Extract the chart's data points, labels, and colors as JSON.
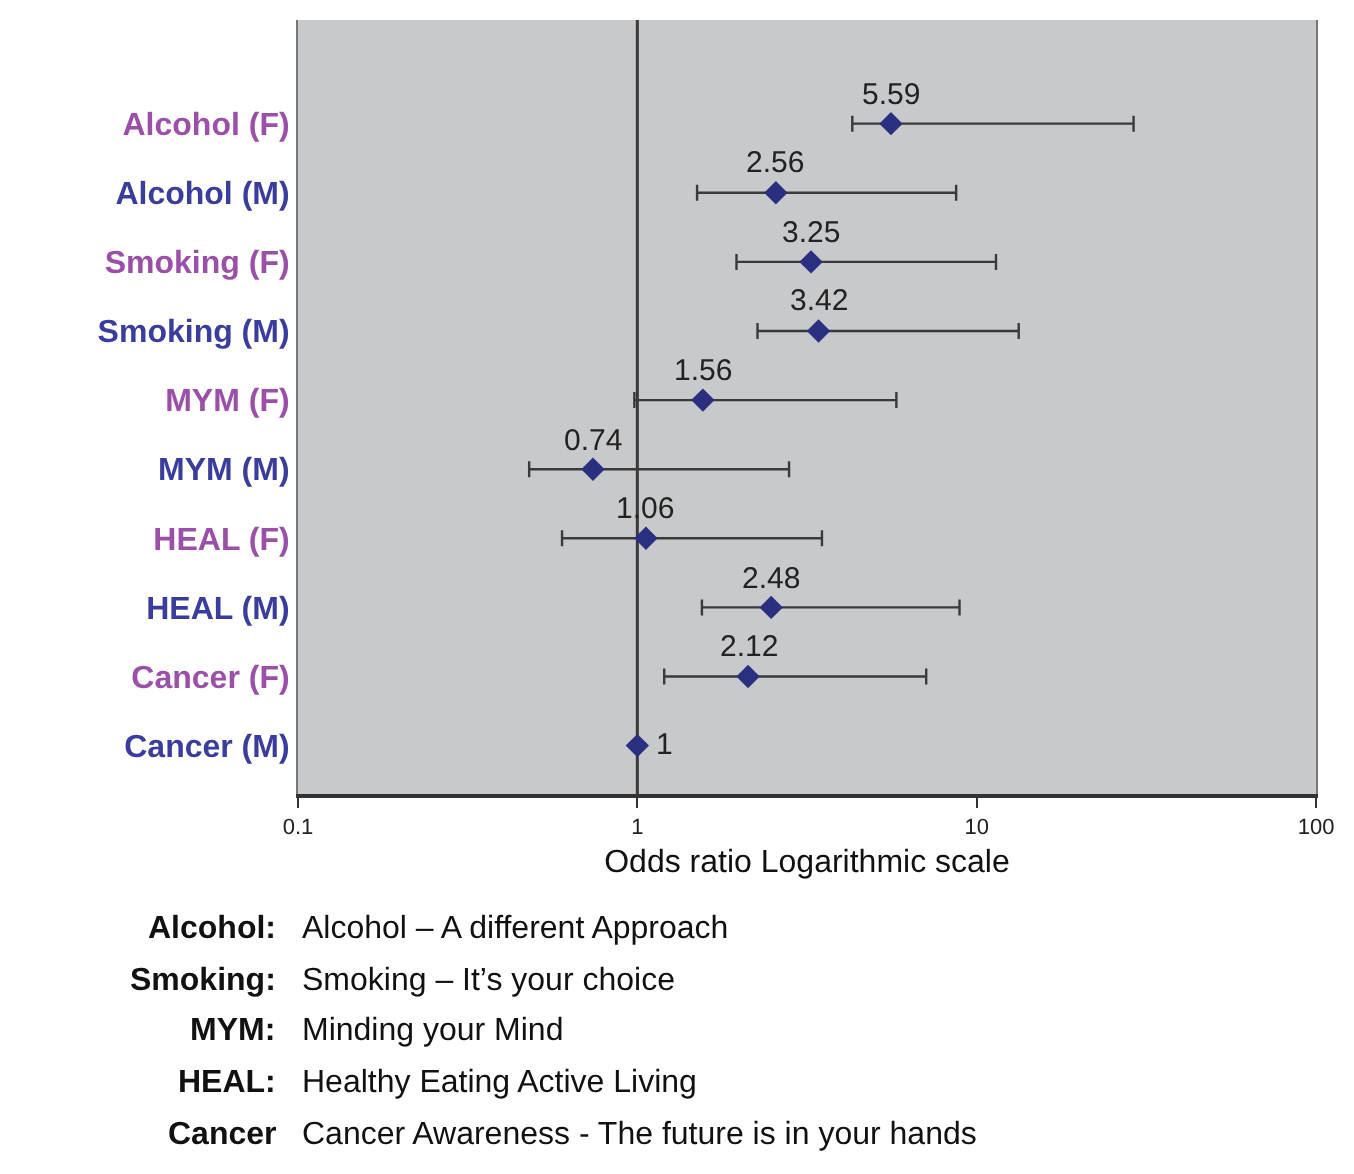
{
  "chart_data": {
    "type": "scatter",
    "orientation": "horizontal",
    "categories": [
      "Alcohol (F)",
      "Alcohol (M)",
      "Smoking (F)",
      "Smoking (M)",
      "MYM (F)",
      "MYM (M)",
      "HEAL (F)",
      "HEAL (M)",
      "Cancer (F)",
      "Cancer (M)"
    ],
    "values": [
      5.59,
      2.56,
      3.25,
      3.42,
      1.56,
      0.74,
      1.06,
      2.48,
      2.12,
      1
    ],
    "errors": [
      [
        4.3,
        29
      ],
      [
        1.5,
        8.7
      ],
      [
        1.96,
        11.4
      ],
      [
        2.26,
        13.3
      ],
      [
        0.98,
        5.8
      ],
      [
        0.48,
        2.8
      ],
      [
        0.6,
        3.5
      ],
      [
        1.55,
        8.9
      ],
      [
        1.2,
        7.1
      ],
      null
    ],
    "color": "#2b2f7f",
    "marker": "diamond",
    "data_labels": true,
    "log": "x",
    "xlim": [
      0.1,
      100
    ],
    "xticks": [
      0.1,
      1,
      10,
      100
    ],
    "grid": false,
    "legend": false,
    "xlabel": "Odds ratio Logarithmic scale",
    "ref_lines": [
      {
        "axis": "x",
        "value": 1,
        "color": "#3a3a3a"
      }
    ],
    "annotations": [
      "Alcohol: Alcohol – A different Approach",
      "Smoking: Smoking – It’s your choice",
      "MYM: Minding your Mind",
      "HEAL: Healthy Eating Active Living",
      "Cancer Cancer Awareness - The future is in your hands"
    ]
  }
}
